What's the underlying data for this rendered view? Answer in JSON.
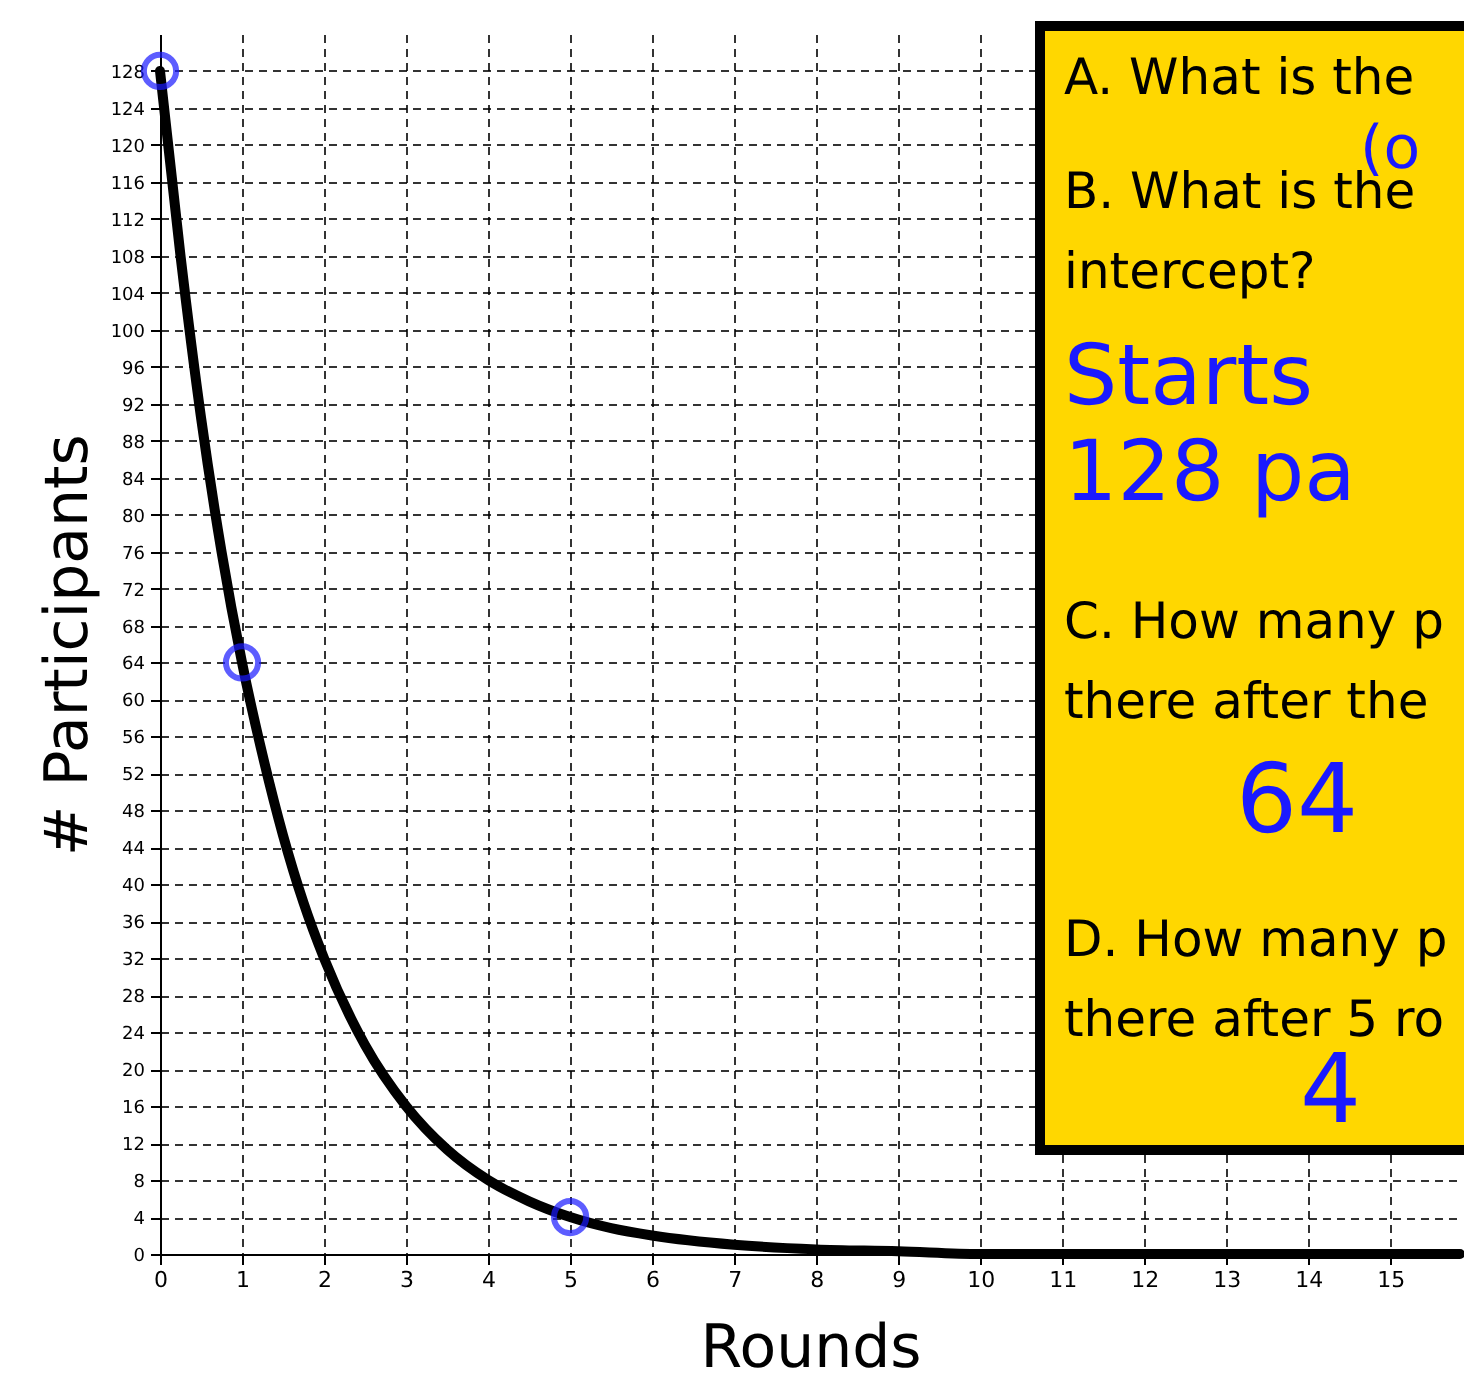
{
  "chart_data": {
    "type": "line",
    "xlabel": "Rounds",
    "ylabel": "# Participants",
    "xlim": [
      0,
      15.85
    ],
    "ylim": [
      0,
      132
    ],
    "xticks": [
      0,
      1,
      2,
      3,
      4,
      5,
      6,
      7,
      8,
      9,
      10,
      11,
      12,
      13,
      14,
      15
    ],
    "yticks": [
      0,
      4,
      8,
      12,
      16,
      20,
      24,
      28,
      32,
      36,
      40,
      44,
      48,
      52,
      56,
      60,
      64,
      68,
      72,
      76,
      80,
      84,
      88,
      92,
      96,
      100,
      104,
      108,
      112,
      116,
      120,
      124,
      128
    ],
    "grid": true,
    "series": [
      {
        "color": "#000000",
        "line_style": "solid",
        "marker": "none",
        "x": [
          0,
          0.25,
          0.5,
          0.75,
          1,
          1.25,
          1.5,
          1.75,
          2,
          2.5,
          3,
          3.5,
          4,
          4.5,
          5,
          5.5,
          6,
          7,
          8,
          9,
          10,
          11,
          12,
          13,
          14,
          15,
          15.85
        ],
        "values": [
          128,
          108,
          90.5,
          76,
          64,
          54,
          45.3,
          38,
          32,
          22.6,
          16,
          11.3,
          8,
          5.7,
          4,
          2.8,
          2,
          1,
          0.5,
          0.3,
          0,
          0,
          0,
          0,
          0,
          0,
          0
        ]
      },
      {
        "type": "scatter",
        "color": "#1a1aff",
        "marker": "circle",
        "x": [
          0,
          1,
          5
        ],
        "values": [
          128,
          64,
          4
        ]
      }
    ],
    "annotations": [
      "A. What is the",
      "B. What is the",
      "intercept?",
      "C. How many p",
      "there after the",
      "D. How many p",
      "there after 5 ro",
      "(o",
      "Starts",
      "128 pa",
      "64",
      "4"
    ]
  }
}
